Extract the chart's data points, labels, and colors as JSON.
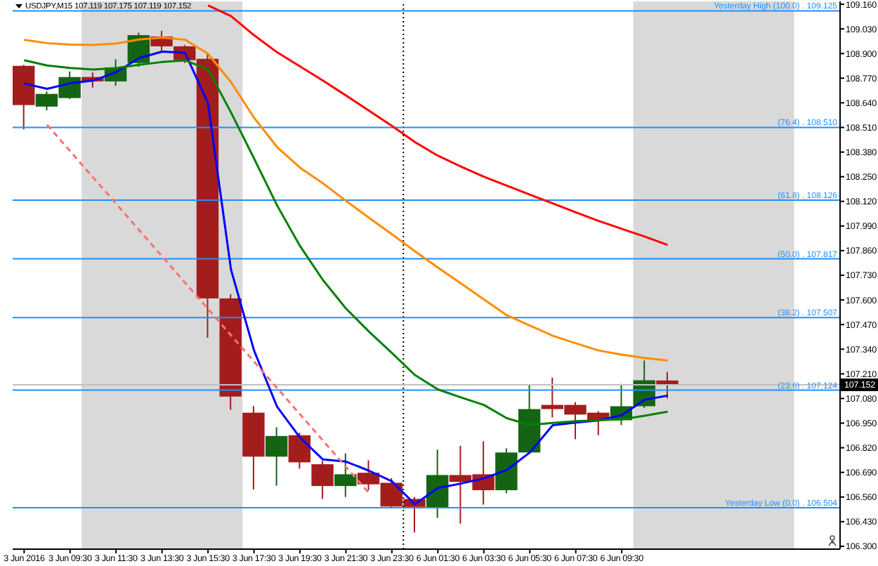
{
  "chart_data": {
    "type": "candlestick",
    "title": "USDJPY,M15 107.119 107.175 107.119 107.152",
    "categories": [
      "3 Jun 2016",
      null,
      "3 Jun 09:30",
      null,
      "3 Jun 11:30",
      null,
      "3 Jun 13:30",
      null,
      "3 Jun 15:30",
      null,
      "3 Jun 17:30",
      null,
      "3 Jun 19:30",
      null,
      "3 Jun 21:30",
      null,
      "3 Jun 23:30",
      null,
      "6 Jun 01:30",
      null,
      "6 Jun 03:30",
      null,
      "6 Jun 05:30",
      null,
      "6 Jun 07:30",
      null,
      "6 Jun 09:30",
      null,
      null,
      null,
      null,
      null,
      null,
      null,
      null,
      null
    ],
    "ohlc": [
      [
        108.835,
        108.84,
        108.5,
        108.628
      ],
      [
        108.62,
        108.7,
        108.6,
        108.687
      ],
      [
        108.665,
        108.805,
        108.66,
        108.776
      ],
      [
        108.776,
        108.8,
        108.72,
        108.753
      ],
      [
        108.753,
        108.87,
        108.73,
        108.827
      ],
      [
        108.85,
        109.01,
        108.83,
        108.997
      ],
      [
        108.99,
        109.02,
        108.91,
        108.938
      ],
      [
        108.938,
        108.945,
        108.85,
        108.865
      ],
      [
        108.872,
        108.9,
        107.4,
        107.608
      ],
      [
        107.608,
        107.63,
        107.02,
        107.09
      ],
      [
        107.005,
        107.04,
        106.6,
        106.773
      ],
      [
        106.773,
        106.928,
        106.62,
        106.882
      ],
      [
        106.886,
        106.9,
        106.71,
        106.743
      ],
      [
        106.733,
        106.75,
        106.55,
        106.618
      ],
      [
        106.618,
        106.79,
        106.56,
        106.68
      ],
      [
        106.688,
        106.754,
        106.595,
        106.627
      ],
      [
        106.635,
        106.66,
        106.5,
        106.51
      ],
      [
        106.55,
        106.56,
        106.373,
        106.508
      ],
      [
        106.503,
        106.81,
        106.45,
        106.676
      ],
      [
        106.676,
        106.83,
        106.42,
        106.64
      ],
      [
        106.68,
        106.854,
        106.52,
        106.596
      ],
      [
        106.596,
        106.817,
        106.58,
        106.795
      ],
      [
        106.795,
        107.15,
        106.79,
        107.024
      ],
      [
        107.046,
        107.19,
        106.98,
        107.024
      ],
      [
        107.046,
        107.06,
        106.865,
        106.995
      ],
      [
        107.005,
        107.013,
        106.886,
        106.965
      ],
      [
        106.965,
        107.157,
        106.94,
        107.039
      ],
      [
        107.039,
        107.28,
        107.03,
        107.176
      ],
      [
        107.175,
        107.22,
        107.08,
        107.152
      ],
      null,
      null,
      null,
      null,
      null,
      null,
      null
    ],
    "colors": [
      "#a31d1d",
      "#146414",
      "#146414",
      "#a31d1d",
      "#146414",
      "#146414",
      "#a31d1d",
      "#a31d1d",
      "#a31d1d",
      "#a31d1d",
      "#a31d1d",
      "#146414",
      "#a31d1d",
      "#a31d1d",
      "#146414",
      "#a31d1d",
      "#a31d1d",
      "#a31d1d",
      "#146414",
      "#a31d1d",
      "#a31d1d",
      "#146414",
      "#146414",
      "#a31d1d",
      "#a31d1d",
      "#a31d1d",
      "#146414",
      "#146414",
      "#a31d1d",
      null,
      null,
      null,
      null,
      null,
      null,
      null
    ],
    "series": [
      {
        "type": "line",
        "color": "#0000ff",
        "values": [
          108.742,
          108.714,
          108.743,
          108.757,
          108.801,
          108.876,
          108.91,
          108.904,
          108.638,
          107.76,
          107.334,
          107.038,
          106.874,
          106.758,
          106.747,
          106.699,
          106.643,
          106.522,
          106.607,
          106.631,
          106.658,
          106.703,
          106.795,
          106.939,
          106.953,
          106.964,
          106.992,
          107.073,
          107.095,
          null,
          null,
          null,
          null,
          null,
          null,
          null
        ]
      },
      {
        "type": "line",
        "color": "#008000",
        "values": [
          108.865,
          108.837,
          108.824,
          108.816,
          108.823,
          108.841,
          108.855,
          108.864,
          108.817,
          108.589,
          108.347,
          108.1,
          107.885,
          107.705,
          107.555,
          107.433,
          107.32,
          107.204,
          107.128,
          107.086,
          107.046,
          106.976,
          106.94,
          106.951,
          106.96,
          106.965,
          106.97,
          106.989,
          107.01,
          null,
          null,
          null,
          null,
          null,
          null,
          null
        ]
      },
      {
        "type": "line",
        "color": "#ff8c00",
        "values": [
          108.972,
          108.955,
          108.947,
          108.945,
          108.953,
          108.974,
          108.984,
          108.973,
          108.899,
          108.749,
          108.562,
          108.407,
          108.298,
          108.215,
          108.123,
          108.034,
          107.947,
          107.857,
          107.771,
          107.687,
          107.603,
          107.519,
          107.465,
          107.411,
          107.371,
          107.333,
          107.311,
          107.294,
          107.28,
          null,
          null,
          null,
          null,
          null,
          null,
          null
        ]
      },
      {
        "type": "line",
        "color": "#ff0000",
        "values": [
          null,
          null,
          null,
          null,
          null,
          null,
          null,
          null,
          109.154,
          109.098,
          108.997,
          108.907,
          108.832,
          108.757,
          108.679,
          108.599,
          108.518,
          108.433,
          108.361,
          108.304,
          108.25,
          108.203,
          108.156,
          108.109,
          108.062,
          108.017,
          107.975,
          107.934,
          107.89,
          null,
          null,
          null,
          null,
          null,
          null,
          null
        ]
      },
      {
        "type": "line",
        "color": "#ff7070",
        "line_style": "dashed",
        "values": [
          null,
          108.524,
          108.385,
          108.246,
          108.108,
          107.969,
          107.83,
          107.691,
          107.552,
          107.414,
          107.275,
          107.136,
          106.997,
          106.858,
          106.719,
          106.581,
          null,
          null,
          null,
          null,
          null,
          null,
          null,
          null,
          null,
          null,
          null,
          null,
          null,
          null,
          null,
          null,
          null,
          null,
          null,
          null
        ]
      }
    ],
    "ylim": [
      106.285,
      109.175
    ],
    "yticks": [
      {
        "value": 106.3,
        "label": "106.300"
      },
      {
        "value": 106.43,
        "label": "106.430"
      },
      {
        "value": 106.56,
        "label": "106.560"
      },
      {
        "value": 106.69,
        "label": "106.690"
      },
      {
        "value": 106.82,
        "label": "106.820"
      },
      {
        "value": 106.95,
        "label": "106.950"
      },
      {
        "value": 107.08,
        "label": "107.080"
      },
      {
        "value": 107.21,
        "label": "107.210"
      },
      {
        "value": 107.34,
        "label": "107.340"
      },
      {
        "value": 107.47,
        "label": "107.470"
      },
      {
        "value": 107.6,
        "label": "107.600"
      },
      {
        "value": 107.73,
        "label": "107.730"
      },
      {
        "value": 107.86,
        "label": "107.860"
      },
      {
        "value": 107.99,
        "label": "107.990"
      },
      {
        "value": 108.12,
        "label": "108.120"
      },
      {
        "value": 108.25,
        "label": "108.250"
      },
      {
        "value": 108.38,
        "label": "108.380"
      },
      {
        "value": 108.51,
        "label": "108.510"
      },
      {
        "value": 108.64,
        "label": "108.640"
      },
      {
        "value": 108.77,
        "label": "108.770"
      },
      {
        "value": 108.9,
        "label": "108.900"
      },
      {
        "value": 109.03,
        "label": "109.030"
      },
      {
        "value": 109.16,
        "label": "109.160"
      }
    ],
    "ref_lines": [
      {
        "axis": "y",
        "value": 109.125,
        "label": "Yesterday High (100.0) . 109.125",
        "color": "#1e90ff"
      },
      {
        "axis": "y",
        "value": 108.51,
        "label": "(76.4) . 108.510",
        "color": "#1e90ff"
      },
      {
        "axis": "y",
        "value": 108.126,
        "label": "(61.8) . 108.126",
        "color": "#1e90ff"
      },
      {
        "axis": "y",
        "value": 107.817,
        "label": "(50.0) . 107.817",
        "color": "#1e90ff"
      },
      {
        "axis": "y",
        "value": 107.507,
        "label": "(38.2) . 107.507",
        "color": "#1e90ff"
      },
      {
        "axis": "y",
        "value": 107.124,
        "label": "(23.6) . 107.124",
        "color": "#1e90ff"
      },
      {
        "axis": "y",
        "value": 106.504,
        "label": "Yesterday Low (0.0) . 106.504",
        "color": "#1e90ff"
      },
      {
        "axis": "y",
        "value": 107.152,
        "label": "107.152",
        "color": "#c0c0c0"
      }
    ],
    "marker": "none",
    "line_style": "solid"
  }
}
